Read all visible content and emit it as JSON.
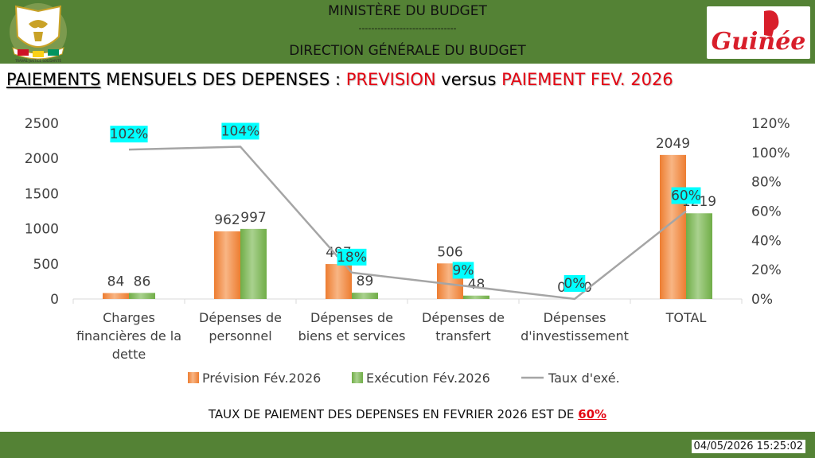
{
  "header": {
    "ministry": "MINISTÈRE DU BUDGET",
    "separator": "-------------------------------",
    "direction": "DIRECTION GÉNÉRALE DU BUDGET",
    "brand": "Guinée",
    "crest_icon": "guinea-coat-of-arms",
    "crest_motto": "TRAVAIL JUSTICE SOLIDARITÉ"
  },
  "title": {
    "part1": "PAIEMENTS",
    "part2": " MENSUELS DES DEPENSES : ",
    "part3": "PREVISION",
    "part4": " versus ",
    "part5": "PAIEMENT FEV. 2026"
  },
  "chart_data": {
    "type": "bar",
    "categories": [
      [
        "Charges",
        "financières de la",
        "dette"
      ],
      [
        "Dépenses de",
        "personnel"
      ],
      [
        "Dépenses de",
        "biens et services"
      ],
      [
        "Dépenses de",
        "transfert"
      ],
      [
        "Dépenses",
        "d'investissement"
      ],
      [
        "TOTAL"
      ]
    ],
    "series": [
      {
        "name": "Prévision Fév.2026",
        "type": "bar",
        "axis": "left",
        "values": [
          84,
          962,
          497,
          506,
          0,
          2049
        ],
        "color": "#ed7d31"
      },
      {
        "name": "Exécution Fév.2026",
        "type": "bar",
        "axis": "left",
        "values": [
          86,
          997,
          89,
          48,
          0,
          1219
        ],
        "color": "#70ad47"
      },
      {
        "name": "Taux d'exé.",
        "type": "line",
        "axis": "right",
        "values": [
          102,
          104,
          18,
          9,
          0,
          60
        ],
        "labels": [
          "102%",
          "104%",
          "18%",
          "9%",
          "0%",
          "60%"
        ],
        "color": "#a5a5a5"
      }
    ],
    "y_left": {
      "min": 0,
      "max": 2500,
      "ticks": [
        "0",
        "500",
        "1000",
        "1500",
        "2000",
        "2500"
      ]
    },
    "y_right": {
      "min": 0,
      "max": 120,
      "ticks": [
        "0%",
        "20%",
        "40%",
        "60%",
        "80%",
        "100%",
        "120%"
      ]
    },
    "grid": false,
    "legend_position": "bottom",
    "label_highlight_color": "#00ffff"
  },
  "footer": {
    "text": "TAUX DE PAIEMENT DES DEPENSES EN FEVRIER 2026 EST DE ",
    "rate": "60%",
    "timestamp": "04/05/2026 15:25:02"
  },
  "colors": {
    "header_green": "#548235",
    "title_red": "#e30613",
    "brand_red": "#d81e2a"
  }
}
